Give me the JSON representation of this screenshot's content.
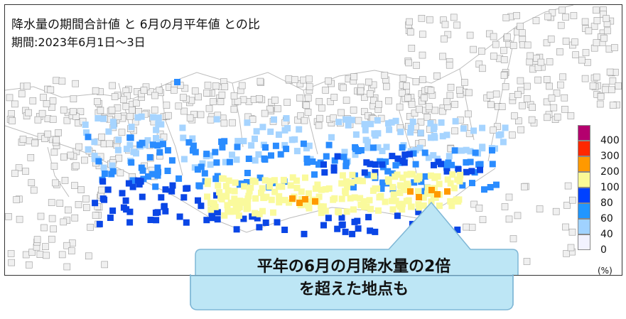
{
  "title": {
    "line1": "降水量の期間合計値 と 6月の月平年値 との比",
    "line2": "期間:2023年6月1日～3日"
  },
  "legend": {
    "unit": "(%)",
    "entries": [
      {
        "label": "400",
        "color": "#b4006e"
      },
      {
        "label": "300",
        "color": "#ff2800"
      },
      {
        "label": "200",
        "color": "#ff9900"
      },
      {
        "label": "100",
        "color": "#fafa96"
      },
      {
        "label": "80",
        "color": "#0041ff"
      },
      {
        "label": "60",
        "color": "#2196ff"
      },
      {
        "label": "40",
        "color": "#a0d2ff"
      },
      {
        "label": "0",
        "color": "#f2f2ff"
      }
    ]
  },
  "callout": {
    "line1": "平年の6月の月降水量の2倍",
    "line2": "を超えた地点も",
    "fill": "#bde6f5",
    "border": "#7fb7d6"
  },
  "colors": {
    "gray_station": "#f0f0f0",
    "station_edge": "#9a9a9a",
    "light_blue": "#a6d4ff",
    "mid_blue": "#2a8cff",
    "deep_blue": "#0a46e6",
    "yellow": "#fafa9c",
    "orange": "#ff9a00"
  }
}
